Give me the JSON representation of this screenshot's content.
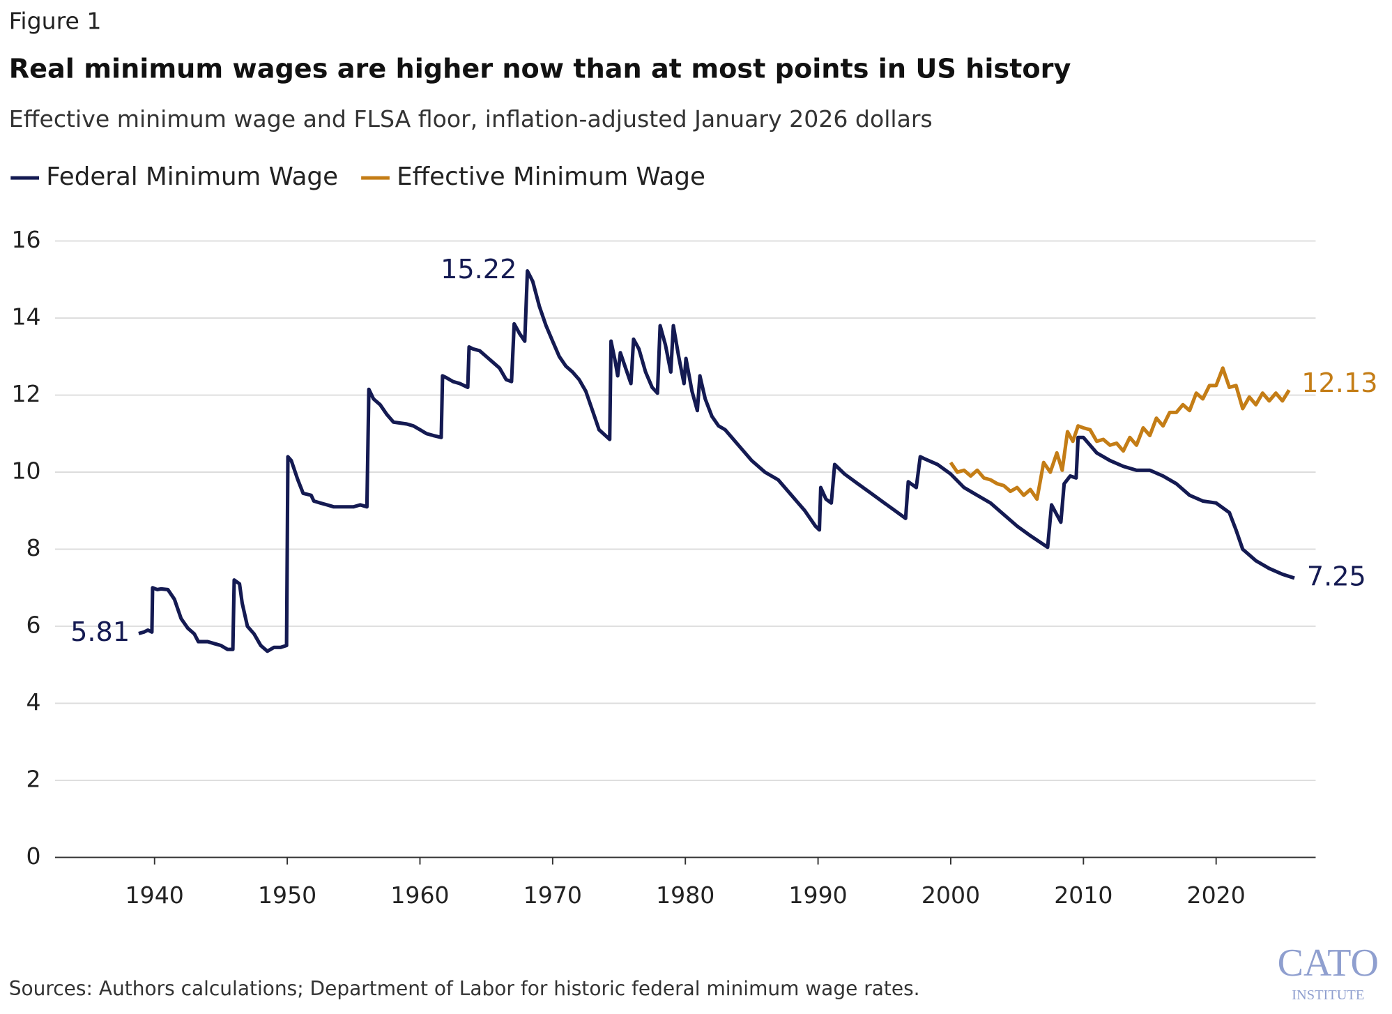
{
  "figure_label": "Figure 1",
  "chart_data": {
    "type": "line",
    "title": "Real minimum wages are higher now than at most points in US history",
    "subtitle": "Effective minimum wage and FLSA floor, inflation-adjusted January 2026 dollars",
    "xlim": [
      1932.5,
      2027.5
    ],
    "xticks": [
      1940,
      1950,
      1960,
      1970,
      1980,
      1990,
      2000,
      2010,
      2020
    ],
    "ylim": [
      0,
      16
    ],
    "yticks": [
      0,
      2,
      4,
      6,
      8,
      10,
      12,
      14,
      16
    ],
    "grid": true,
    "series": [
      {
        "name": "Federal Minimum Wage",
        "color": "#141a52",
        "x": [
          1938.8,
          1939.2,
          1939.5,
          1939.8,
          1939.85,
          1940.2,
          1940.5,
          1941,
          1941.5,
          1942,
          1942.5,
          1943,
          1943.3,
          1944,
          1944.5,
          1945,
          1945.5,
          1945.9,
          1946,
          1946.4,
          1946.6,
          1947,
          1947.5,
          1948,
          1948.5,
          1949,
          1949.5,
          1949.95,
          1950.05,
          1950.3,
          1950.8,
          1951.2,
          1951.8,
          1952,
          1952.5,
          1953,
          1953.5,
          1954,
          1955,
          1955.5,
          1956,
          1956.15,
          1956.5,
          1957,
          1957.5,
          1958,
          1959,
          1959.5,
          1960,
          1960.5,
          1961,
          1961.6,
          1961.7,
          1962,
          1962.5,
          1963,
          1963.6,
          1963.7,
          1964,
          1964.5,
          1965,
          1965.5,
          1966,
          1966.5,
          1966.9,
          1967.1,
          1967.5,
          1967.9,
          1968.1,
          1968.5,
          1969,
          1969.5,
          1970,
          1970.5,
          1971,
          1971.5,
          1972,
          1972.5,
          1973,
          1973.5,
          1974.3,
          1974.4,
          1974.7,
          1974.9,
          1975.1,
          1975.5,
          1975.9,
          1976.1,
          1976.5,
          1977,
          1977.5,
          1977.9,
          1978.1,
          1978.5,
          1978.9,
          1979.1,
          1979.5,
          1979.9,
          1980.05,
          1980.5,
          1980.9,
          1981.1,
          1981.5,
          1982,
          1982.5,
          1983,
          1984,
          1985,
          1986,
          1987,
          1988,
          1989,
          1989.8,
          1990.1,
          1990.2,
          1990.6,
          1991,
          1991.25,
          1992,
          1993,
          1994,
          1995,
          1996,
          1996.6,
          1996.8,
          1997.4,
          1997.7,
          1998,
          1999,
          2000,
          2001,
          2002,
          2003,
          2004,
          2005,
          2006,
          2007.3,
          2007.6,
          2008.3,
          2008.55,
          2009,
          2009.45,
          2009.6,
          2010,
          2011,
          2012,
          2013,
          2014,
          2015,
          2016,
          2017,
          2018,
          2019,
          2020,
          2021,
          2021.5,
          2022,
          2023,
          2024,
          2025,
          2025.9
        ],
        "values": [
          5.81,
          5.85,
          5.9,
          5.85,
          7.0,
          6.95,
          6.97,
          6.95,
          6.7,
          6.2,
          5.95,
          5.8,
          5.6,
          5.6,
          5.55,
          5.5,
          5.4,
          5.4,
          7.2,
          7.1,
          6.6,
          6.0,
          5.8,
          5.5,
          5.35,
          5.45,
          5.45,
          5.5,
          10.4,
          10.3,
          9.8,
          9.45,
          9.4,
          9.25,
          9.2,
          9.15,
          9.1,
          9.1,
          9.1,
          9.15,
          9.1,
          12.15,
          11.9,
          11.75,
          11.5,
          11.3,
          11.25,
          11.2,
          11.1,
          11.0,
          10.95,
          10.9,
          12.5,
          12.45,
          12.35,
          12.3,
          12.2,
          13.25,
          13.2,
          13.15,
          13.0,
          12.85,
          12.7,
          12.4,
          12.35,
          13.85,
          13.6,
          13.4,
          15.22,
          14.95,
          14.3,
          13.8,
          13.4,
          13.0,
          12.75,
          12.6,
          12.4,
          12.1,
          11.6,
          11.1,
          10.85,
          13.4,
          12.9,
          12.5,
          13.1,
          12.7,
          12.3,
          13.45,
          13.2,
          12.6,
          12.2,
          12.05,
          13.8,
          13.3,
          12.6,
          13.8,
          13.0,
          12.3,
          12.95,
          12.1,
          11.6,
          12.5,
          11.9,
          11.45,
          11.2,
          11.1,
          10.7,
          10.3,
          10.0,
          9.8,
          9.4,
          9.0,
          8.6,
          8.5,
          9.6,
          9.3,
          9.2,
          10.2,
          9.95,
          9.7,
          9.45,
          9.2,
          8.95,
          8.8,
          9.75,
          9.6,
          10.4,
          10.35,
          10.2,
          9.95,
          9.6,
          9.4,
          9.2,
          8.9,
          8.6,
          8.35,
          8.05,
          9.15,
          8.7,
          9.7,
          9.9,
          9.85,
          10.9,
          10.9,
          10.5,
          10.3,
          10.15,
          10.05,
          10.05,
          9.9,
          9.7,
          9.4,
          9.25,
          9.2,
          8.95,
          8.5,
          8.0,
          7.7,
          7.5,
          7.35,
          7.25
        ]
      },
      {
        "name": "Effective Minimum Wage",
        "color": "#c47d16",
        "x": [
          2000,
          2000.5,
          2001,
          2001.5,
          2002,
          2002.5,
          2003,
          2003.5,
          2004,
          2004.5,
          2005,
          2005.5,
          2006,
          2006.5,
          2007,
          2007.5,
          2008,
          2008.4,
          2008.8,
          2009.2,
          2009.6,
          2010,
          2010.5,
          2011,
          2011.5,
          2012,
          2012.5,
          2013,
          2013.5,
          2014,
          2014.5,
          2015,
          2015.5,
          2016,
          2016.5,
          2017,
          2017.5,
          2018,
          2018.5,
          2019,
          2019.5,
          2020,
          2020.5,
          2021,
          2021.5,
          2022,
          2022.5,
          2023,
          2023.5,
          2024,
          2024.5,
          2025,
          2025.5
        ],
        "values": [
          10.25,
          10.0,
          10.05,
          9.9,
          10.05,
          9.85,
          9.8,
          9.7,
          9.65,
          9.5,
          9.6,
          9.4,
          9.55,
          9.3,
          10.25,
          10.0,
          10.5,
          10.05,
          11.05,
          10.8,
          11.2,
          11.15,
          11.1,
          10.8,
          10.85,
          10.7,
          10.75,
          10.55,
          10.9,
          10.7,
          11.15,
          10.95,
          11.4,
          11.2,
          11.55,
          11.55,
          11.75,
          11.6,
          12.05,
          11.9,
          12.25,
          12.25,
          12.7,
          12.2,
          12.25,
          11.65,
          11.95,
          11.75,
          12.05,
          11.85,
          12.05,
          11.85,
          12.13
        ]
      }
    ]
  },
  "source": "Sources: Authors calculations; Department of Labor for historic federal minimum wage rates.",
  "logo": {
    "name": "CATO",
    "subtitle": "INSTITUTE"
  }
}
